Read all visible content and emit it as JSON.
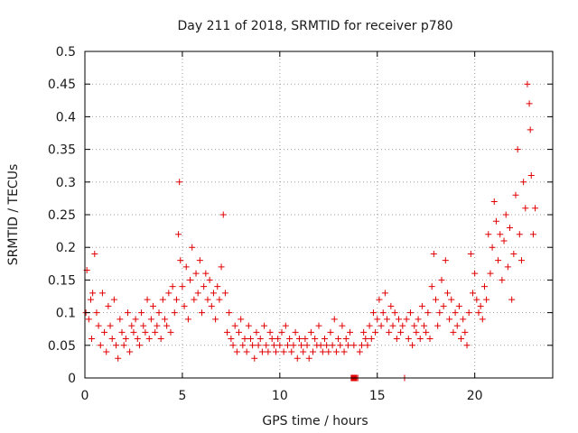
{
  "chart_data": {
    "type": "scatter",
    "title": "Day 211 of 2018, SRMTID for receiver p780",
    "xlabel": "GPS time / hours",
    "ylabel": "SRMTID / TECUs",
    "xlim": [
      0,
      24
    ],
    "ylim": [
      0,
      0.5
    ],
    "xticks": [
      0,
      5,
      10,
      15,
      20
    ],
    "xtick_labels": [
      "0",
      "5",
      "10",
      "15",
      "20"
    ],
    "yticks": [
      0,
      0.05,
      0.1,
      0.15,
      0.2,
      0.25,
      0.3,
      0.35,
      0.4,
      0.45,
      0.5
    ],
    "ytick_labels": [
      "0",
      "0.05",
      "0.1",
      "0.15",
      "0.2",
      "0.25",
      "0.3",
      "0.35",
      "0.4",
      "0.45",
      "0.5"
    ],
    "grid": true,
    "marker_color": "#e00000",
    "series": [
      {
        "name": "SRMTID",
        "marker": "+",
        "x": [
          0.05,
          0.1,
          0.2,
          0.3,
          0.35,
          0.4,
          0.5,
          0.6,
          0.7,
          0.8,
          0.9,
          1.0,
          1.1,
          1.2,
          1.3,
          1.4,
          1.5,
          1.6,
          1.7,
          1.8,
          1.9,
          2.0,
          2.1,
          2.2,
          2.3,
          2.4,
          2.5,
          2.6,
          2.7,
          2.8,
          2.9,
          3.0,
          3.1,
          3.2,
          3.3,
          3.4,
          3.5,
          3.6,
          3.7,
          3.8,
          3.9,
          4.0,
          4.1,
          4.2,
          4.3,
          4.4,
          4.5,
          4.6,
          4.7,
          4.8,
          4.85,
          4.9,
          5.0,
          5.1,
          5.2,
          5.3,
          5.4,
          5.5,
          5.6,
          5.7,
          5.8,
          5.9,
          6.0,
          6.1,
          6.2,
          6.3,
          6.4,
          6.5,
          6.6,
          6.7,
          6.8,
          6.9,
          7.0,
          7.1,
          7.2,
          7.3,
          7.4,
          7.5,
          7.6,
          7.7,
          7.8,
          7.9,
          8.0,
          8.1,
          8.2,
          8.3,
          8.4,
          8.5,
          8.6,
          8.7,
          8.8,
          8.9,
          9.0,
          9.1,
          9.2,
          9.3,
          9.4,
          9.5,
          9.6,
          9.7,
          9.8,
          9.9,
          10.0,
          10.1,
          10.2,
          10.3,
          10.4,
          10.5,
          10.6,
          10.7,
          10.8,
          10.9,
          11.0,
          11.1,
          11.2,
          11.3,
          11.4,
          11.5,
          11.6,
          11.7,
          11.8,
          11.9,
          12.0,
          12.1,
          12.2,
          12.3,
          12.4,
          12.5,
          12.6,
          12.7,
          12.8,
          12.9,
          13.0,
          13.1,
          13.2,
          13.3,
          13.4,
          13.5,
          13.6,
          13.8,
          14.0,
          14.1,
          14.2,
          14.3,
          14.4,
          14.5,
          14.6,
          14.7,
          14.8,
          14.9,
          15.0,
          15.1,
          15.2,
          15.3,
          15.4,
          15.5,
          15.6,
          15.7,
          15.8,
          15.9,
          16.0,
          16.1,
          16.2,
          16.3,
          16.4,
          16.5,
          16.6,
          16.7,
          16.8,
          16.9,
          17.0,
          17.1,
          17.2,
          17.3,
          17.4,
          17.5,
          17.6,
          17.7,
          17.8,
          17.9,
          18.0,
          18.1,
          18.2,
          18.3,
          18.4,
          18.5,
          18.6,
          18.7,
          18.8,
          18.9,
          19.0,
          19.1,
          19.2,
          19.3,
          19.4,
          19.5,
          19.6,
          19.7,
          19.8,
          19.9,
          20.0,
          20.1,
          20.2,
          20.3,
          20.4,
          20.5,
          20.6,
          20.7,
          20.8,
          20.9,
          21.0,
          21.1,
          21.2,
          21.3,
          21.4,
          21.5,
          21.6,
          21.7,
          21.8,
          21.9,
          22.0,
          22.1,
          22.2,
          22.3,
          22.4,
          22.5,
          22.6,
          22.7,
          22.8,
          22.85,
          22.9,
          23.0,
          23.1
        ],
        "y": [
          0.1,
          0.165,
          0.09,
          0.12,
          0.06,
          0.13,
          0.19,
          0.1,
          0.08,
          0.05,
          0.13,
          0.07,
          0.04,
          0.11,
          0.08,
          0.06,
          0.12,
          0.05,
          0.03,
          0.09,
          0.07,
          0.05,
          0.06,
          0.1,
          0.04,
          0.08,
          0.07,
          0.09,
          0.06,
          0.05,
          0.1,
          0.08,
          0.07,
          0.12,
          0.06,
          0.09,
          0.11,
          0.07,
          0.08,
          0.1,
          0.06,
          0.12,
          0.09,
          0.08,
          0.13,
          0.07,
          0.14,
          0.1,
          0.12,
          0.22,
          0.3,
          0.18,
          0.14,
          0.11,
          0.17,
          0.09,
          0.15,
          0.2,
          0.12,
          0.16,
          0.13,
          0.18,
          0.1,
          0.14,
          0.16,
          0.12,
          0.15,
          0.11,
          0.13,
          0.09,
          0.14,
          0.12,
          0.17,
          0.25,
          0.13,
          0.07,
          0.1,
          0.06,
          0.05,
          0.08,
          0.04,
          0.07,
          0.09,
          0.05,
          0.06,
          0.04,
          0.08,
          0.06,
          0.05,
          0.03,
          0.07,
          0.05,
          0.06,
          0.04,
          0.08,
          0.05,
          0.04,
          0.07,
          0.06,
          0.05,
          0.04,
          0.06,
          0.05,
          0.07,
          0.04,
          0.08,
          0.05,
          0.06,
          0.04,
          0.05,
          0.07,
          0.03,
          0.06,
          0.05,
          0.04,
          0.06,
          0.05,
          0.03,
          0.07,
          0.04,
          0.06,
          0.05,
          0.08,
          0.05,
          0.04,
          0.06,
          0.05,
          0.04,
          0.07,
          0.05,
          0.09,
          0.04,
          0.06,
          0.05,
          0.08,
          0.04,
          0.06,
          0.05,
          0.07,
          0.05,
          0.0,
          0.04,
          0.05,
          0.07,
          0.06,
          0.05,
          0.08,
          0.06,
          0.1,
          0.07,
          0.09,
          0.12,
          0.08,
          0.1,
          0.13,
          0.09,
          0.07,
          0.11,
          0.08,
          0.1,
          0.06,
          0.09,
          0.07,
          0.08,
          0.0,
          0.09,
          0.06,
          0.1,
          0.05,
          0.08,
          0.07,
          0.09,
          0.06,
          0.11,
          0.08,
          0.07,
          0.1,
          0.06,
          0.14,
          0.19,
          0.12,
          0.08,
          0.1,
          0.15,
          0.11,
          0.18,
          0.13,
          0.09,
          0.12,
          0.07,
          0.1,
          0.08,
          0.11,
          0.06,
          0.09,
          0.07,
          0.05,
          0.1,
          0.19,
          0.13,
          0.16,
          0.12,
          0.1,
          0.11,
          0.09,
          0.14,
          0.12,
          0.22,
          0.16,
          0.2,
          0.27,
          0.24,
          0.18,
          0.22,
          0.15,
          0.21,
          0.25,
          0.17,
          0.23,
          0.12,
          0.19,
          0.28,
          0.35,
          0.22,
          0.18,
          0.3,
          0.26,
          0.45,
          0.42,
          0.38,
          0.31,
          0.22,
          0.26
        ],
        "square_markers_x": [
          13.8
        ]
      }
    ]
  }
}
